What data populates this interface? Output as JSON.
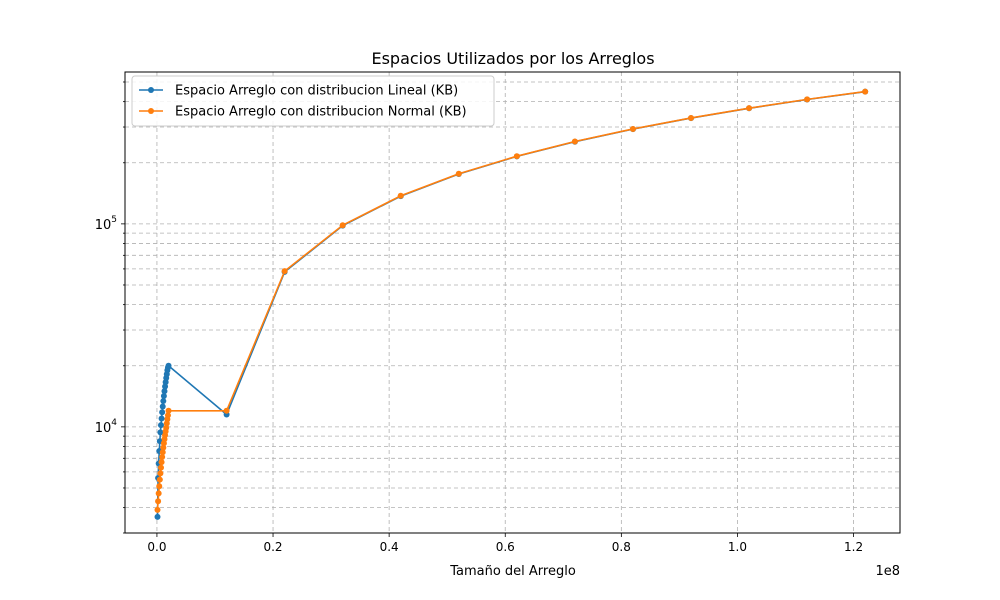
{
  "chart_data": {
    "type": "line",
    "title": "Espacios Utilizados por los Arreglos",
    "xlabel": "Tamaño del Arreglo",
    "ylabel": "",
    "x_offset_label": "1e8",
    "xlim": [
      -5500000,
      128000000
    ],
    "ylim": [
      3000,
      560000
    ],
    "y_scale": "log",
    "grid": "both",
    "legend_position": "top-left",
    "x_ticks": [
      "0.0",
      "0.2",
      "0.4",
      "0.6",
      "0.8",
      "1.0",
      "1.2"
    ],
    "x_tick_values": [
      0,
      20000000,
      40000000,
      60000000,
      80000000,
      100000000,
      120000000
    ],
    "y_ticks": [
      {
        "base": "10",
        "exp": "4",
        "value": 10000
      },
      {
        "base": "10",
        "exp": "5",
        "value": 100000
      }
    ],
    "series": [
      {
        "name": "Espacio Arreglo con distribucion Lineal (KB)",
        "color": "#1f77b4",
        "x": [
          100000,
          200000,
          300000,
          400000,
          500000,
          600000,
          700000,
          800000,
          900000,
          1000000,
          1100000,
          1200000,
          1300000,
          1400000,
          1500000,
          1600000,
          1700000,
          1800000,
          1900000,
          2000000,
          12000000,
          22000000,
          32000000,
          42000000,
          52000000,
          62000000,
          72000000,
          82000000,
          92000000,
          102000000,
          112000000,
          122000000
        ],
        "y": [
          3600,
          5600,
          6600,
          7600,
          8500,
          9400,
          10200,
          11000,
          11800,
          12600,
          13400,
          14200,
          15000,
          15800,
          16600,
          17400,
          18200,
          19000,
          19600,
          20000,
          11500,
          58000,
          98000,
          137000,
          176000,
          215000,
          254000,
          293000,
          332000,
          371000,
          410000,
          448000
        ]
      },
      {
        "name": "Espacio Arreglo con distribucion Normal (KB)",
        "color": "#ff7f0e",
        "x": [
          100000,
          200000,
          300000,
          400000,
          500000,
          600000,
          700000,
          800000,
          900000,
          1000000,
          1100000,
          1200000,
          1300000,
          1400000,
          1500000,
          1600000,
          1700000,
          1800000,
          1900000,
          2000000,
          12000000,
          22000000,
          32000000,
          42000000,
          52000000,
          62000000,
          72000000,
          82000000,
          92000000,
          102000000,
          112000000,
          122000000
        ],
        "y": [
          3900,
          4300,
          4700,
          5100,
          5500,
          5900,
          6300,
          6700,
          7100,
          7500,
          7900,
          8300,
          8700,
          9100,
          9500,
          9900,
          10400,
          10900,
          11400,
          12000,
          12000,
          58500,
          98500,
          137500,
          176500,
          215500,
          254500,
          293500,
          332500,
          371500,
          410500,
          448500
        ]
      }
    ]
  }
}
